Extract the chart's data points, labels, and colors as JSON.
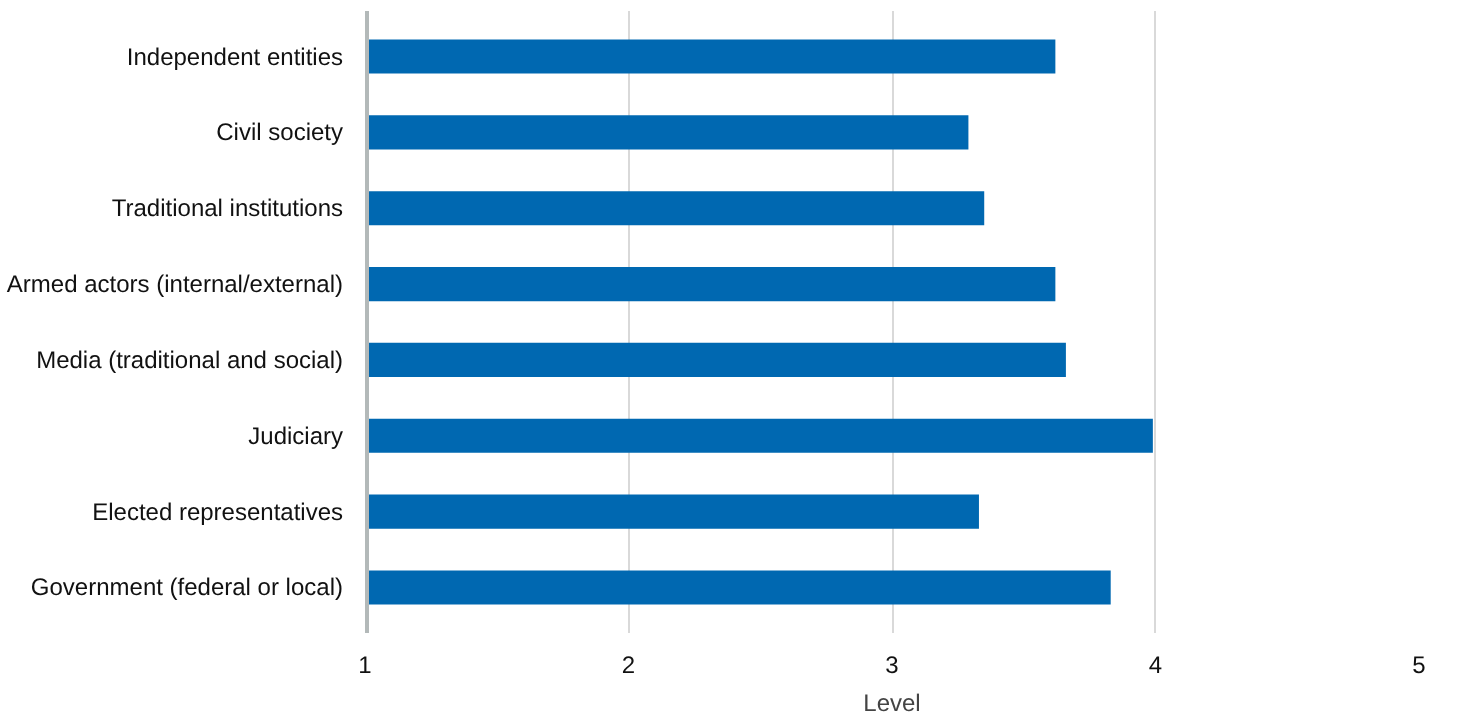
{
  "chart_data": {
    "type": "bar",
    "orientation": "horizontal",
    "xlabel": "Level",
    "categories": [
      "Independent entities",
      "Civil society",
      "Traditional institutions",
      "Armed actors (internal/external)",
      "Media (traditional and social)",
      "Judiciary",
      "Elected representatives",
      "Government (federal or local)"
    ],
    "values": [
      2.62,
      2.29,
      2.35,
      2.62,
      2.66,
      2.99,
      2.33,
      2.83
    ],
    "color": "#0068b1",
    "base": [
      1,
      1,
      1,
      1,
      1,
      1,
      1,
      1
    ],
    "xlim": [
      1,
      5
    ],
    "xticks": [
      1,
      2,
      3,
      4,
      5
    ],
    "grid": "x"
  }
}
